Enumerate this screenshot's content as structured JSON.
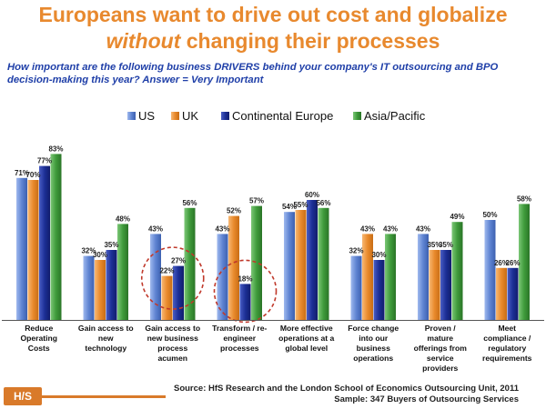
{
  "title": {
    "line1": "Europeans want to drive out cost and globalize",
    "line2_em": "without",
    "line2_rest": " changing their processes"
  },
  "question": "How important are the following business DRIVERS behind your company's IT outsourcing and BPO decision-making this year? Answer = Very Important",
  "logo_text": "H/S",
  "source": {
    "line1": "Source:  HfS Research and the London School of Economics Outsourcing Unit, 2011",
    "line2": "Sample: 347 Buyers of Outsourcing Services"
  },
  "colors": {
    "title": "#e8892e",
    "question": "#1f3fa8",
    "US": "#5f84d2",
    "UK": "#e98a2c",
    "Continental Europe": "#1c2f96",
    "Asia/Pacific": "#3f9b3b",
    "highlight_circle": "#c0392b"
  },
  "chart_data": {
    "type": "bar",
    "title": "",
    "xlabel": "",
    "ylabel": "",
    "ylim": [
      0,
      90
    ],
    "grid": false,
    "legend_position": "top",
    "categories": [
      [
        "Reduce",
        "Operating",
        "Costs"
      ],
      [
        "Gain access to",
        "new",
        "technology"
      ],
      [
        "Gain access to",
        "new business",
        "process",
        "acumen"
      ],
      [
        "Transform / re-",
        "engineer",
        "processes"
      ],
      [
        "More effective",
        "operations at a",
        "global level"
      ],
      [
        "Force change",
        "into our",
        "business",
        "operations"
      ],
      [
        "Proven /",
        "mature",
        "offerings from",
        "service",
        "providers"
      ],
      [
        "Meet",
        "compliance /",
        "regulatory",
        "requirements"
      ]
    ],
    "series": [
      {
        "name": "US",
        "values": [
          71,
          32,
          43,
          43,
          54,
          32,
          43,
          50
        ]
      },
      {
        "name": "UK",
        "values": [
          70,
          30,
          22,
          52,
          55,
          43,
          35,
          26
        ]
      },
      {
        "name": "Continental Europe",
        "values": [
          77,
          35,
          27,
          18,
          60,
          30,
          35,
          26
        ]
      },
      {
        "name": "Asia/Pacific",
        "values": [
          83,
          48,
          56,
          57,
          56,
          43,
          49,
          58
        ]
      }
    ],
    "value_suffix": "%",
    "highlighted": [
      {
        "category_index": 2,
        "series": [
          "UK",
          "Continental Europe"
        ]
      },
      {
        "category_index": 3,
        "series": [
          "Continental Europe"
        ]
      }
    ]
  }
}
